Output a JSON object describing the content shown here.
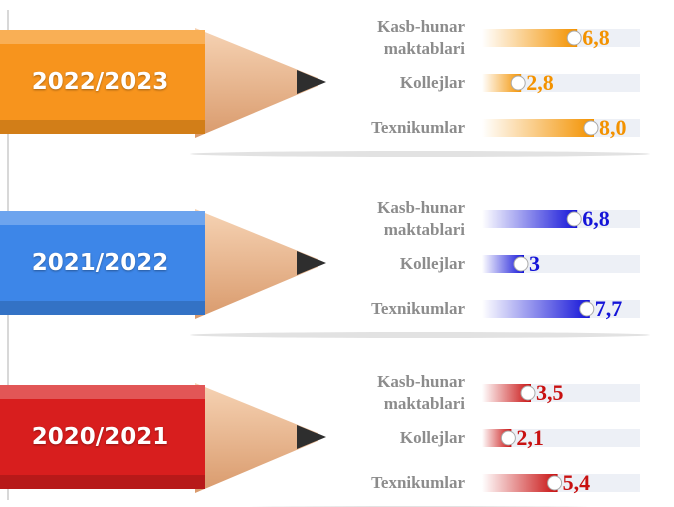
{
  "chart_data": [
    {
      "type": "bar",
      "title": "2022/2023",
      "categories": [
        "Kasb-hunar maktablari",
        "Kollejlar",
        "Texnikumlar"
      ],
      "values": [
        6.8,
        2.8,
        8.0
      ],
      "value_labels": [
        "6,8",
        "2,8",
        "8,0"
      ],
      "color": "#f39200"
    },
    {
      "type": "bar",
      "title": "2021/2022",
      "categories": [
        "Kasb-hunar maktablari",
        "Kollejlar",
        "Texnikumlar"
      ],
      "values": [
        6.8,
        3,
        7.7
      ],
      "value_labels": [
        "6,8",
        "3",
        "7,7"
      ],
      "color": "#1414d8"
    },
    {
      "type": "bar",
      "title": "2020/2021",
      "categories": [
        "Kasb-hunar maktablari",
        "Kollejlar",
        "Texnikumlar"
      ],
      "values": [
        3.5,
        2.1,
        5.4
      ],
      "value_labels": [
        "3,5",
        "2,1",
        "5,4"
      ],
      "color": "#c81010"
    }
  ]
}
